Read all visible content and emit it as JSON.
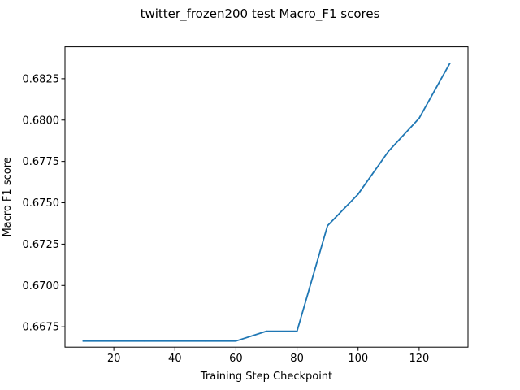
{
  "chart_data": {
    "type": "line",
    "title": "twitter_frozen200 test Macro_F1 scores",
    "xlabel": "Training Step Checkpoint",
    "ylabel": "Macro F1 score",
    "xlim": [
      4,
      136
    ],
    "ylim": [
      0.66627,
      0.68443
    ],
    "xticks": [
      20,
      40,
      60,
      80,
      100,
      120
    ],
    "yticks": [
      0.6675,
      0.67,
      0.6725,
      0.675,
      0.6775,
      0.68,
      0.6825
    ],
    "ytick_labels": [
      "0.6675",
      "0.6700",
      "0.6725",
      "0.6750",
      "0.6775",
      "0.6800",
      "0.6825"
    ],
    "grid": false,
    "series": [
      {
        "color": "#1f77b4",
        "x": [
          10,
          20,
          30,
          40,
          50,
          60,
          70,
          80,
          90,
          100,
          110,
          120,
          130
        ],
        "y": [
          0.66664,
          0.66664,
          0.66664,
          0.66664,
          0.66664,
          0.66664,
          0.66723,
          0.66723,
          0.67361,
          0.67552,
          0.67812,
          0.68011,
          0.68341
        ]
      }
    ]
  }
}
